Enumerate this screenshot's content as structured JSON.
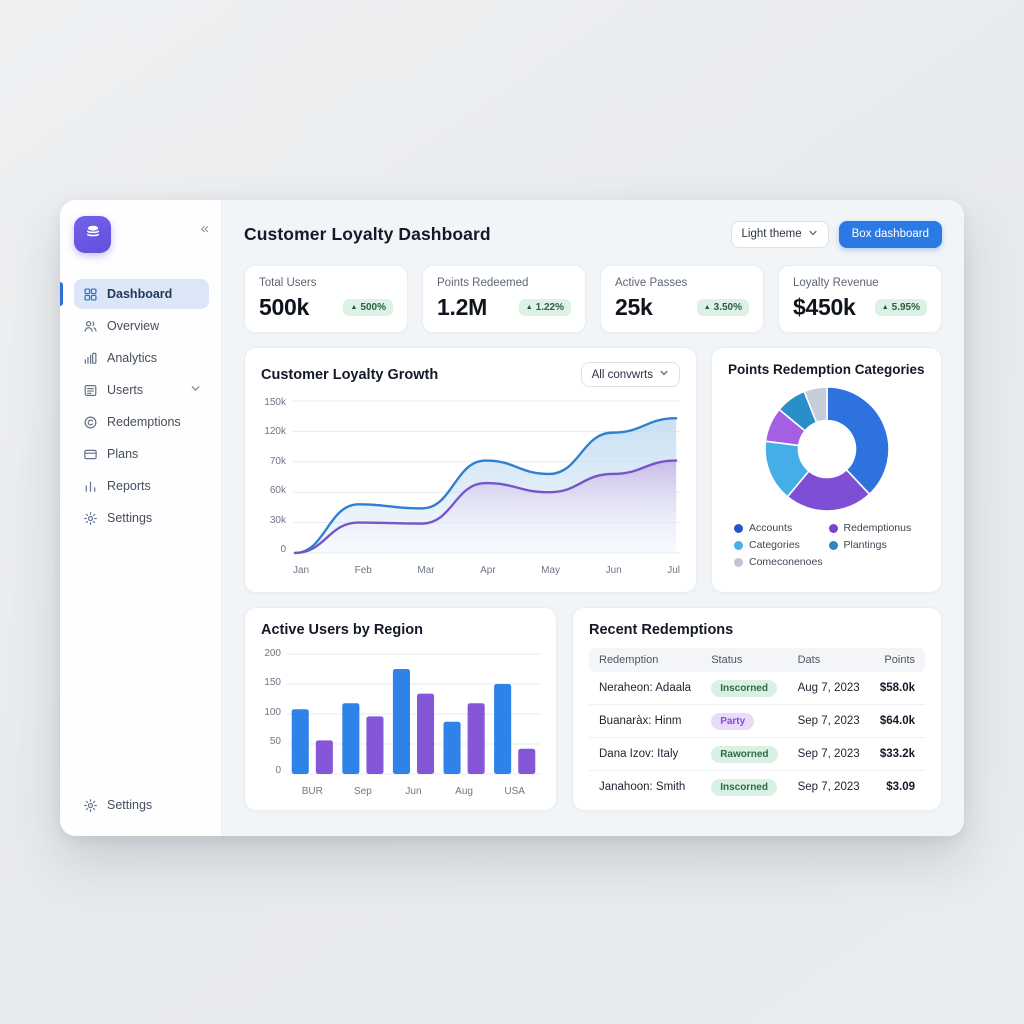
{
  "header": {
    "title": "Customer Loyalty Dashboard",
    "theme_selector_label": "Light theme",
    "primary_button_label": "Box dashboard"
  },
  "sidebar": {
    "collapse_glyph": "«",
    "items": [
      {
        "label": "Dashboard",
        "icon": "grid-icon",
        "active": true,
        "has_chevron": false
      },
      {
        "label": "Overview",
        "icon": "users-icon",
        "active": false,
        "has_chevron": false
      },
      {
        "label": "Analytics",
        "icon": "analytics-icon",
        "active": false,
        "has_chevron": false
      },
      {
        "label": "Userts",
        "icon": "list-icon",
        "active": false,
        "has_chevron": true
      },
      {
        "label": "Redemptions",
        "icon": "copyright-icon",
        "active": false,
        "has_chevron": false
      },
      {
        "label": "Plans",
        "icon": "card-icon",
        "active": false,
        "has_chevron": false
      },
      {
        "label": "Reports",
        "icon": "report-icon",
        "active": false,
        "has_chevron": false
      },
      {
        "label": "Settings",
        "icon": "gear-icon",
        "active": false,
        "has_chevron": false
      }
    ],
    "footer_item": {
      "label": "Settings",
      "icon": "gear-icon"
    }
  },
  "kpis": [
    {
      "label": "Total Users",
      "value": "500k",
      "delta": "500%"
    },
    {
      "label": "Points Redeemed",
      "value": "1.2M",
      "delta": "1.22%"
    },
    {
      "label": "Active Passes",
      "value": "25k",
      "delta": "3.50%"
    },
    {
      "label": "Loyalty Revenue",
      "value": "$450k",
      "delta": "5.95%"
    }
  ],
  "chart_data": [
    {
      "type": "area",
      "title": "Customer Loyalty Growth",
      "filter_label": "All convwrts",
      "x": [
        "Jan",
        "Feb",
        "Mar",
        "Apr",
        "May",
        "Jun",
        "Jul"
      ],
      "y_tick_labels": [
        "0",
        "30k",
        "60k",
        "70k",
        "120k",
        "150k"
      ],
      "y_tick_values": [
        0,
        30000,
        60000,
        70000,
        120000,
        150000
      ],
      "grid": true,
      "legend_position": "none",
      "series": [
        {
          "name": "upper-blue",
          "color": "#2e7ed2",
          "fill_top": "#c3ddf2",
          "values": [
            0,
            48000,
            44000,
            72000,
            66000,
            118000,
            133000
          ]
        },
        {
          "name": "lower-purple",
          "color": "#7556c8",
          "fill_top": "#c9b9e8",
          "values": [
            0,
            30000,
            29000,
            63000,
            60000,
            66000,
            72000
          ]
        }
      ]
    },
    {
      "type": "pie",
      "title": "Points Redemption Categories",
      "donut": true,
      "slices": [
        {
          "label": "Accounts",
          "value": 38,
          "color": "#2d72dd"
        },
        {
          "label": "Redemptionus",
          "value": 23,
          "color": "#7e4fd4"
        },
        {
          "label": "Categories",
          "value": 16,
          "color": "#45aee8"
        },
        {
          "label": "",
          "value": 9,
          "color": "#a55fe3"
        },
        {
          "label": "Plantings",
          "value": 8,
          "color": "#2a8ec9"
        },
        {
          "label": "Comeconenoes",
          "value": 6,
          "color": "#c7cdd8"
        }
      ],
      "legend": [
        {
          "label": "Accounts",
          "color": "#2456c4"
        },
        {
          "label": "Redemptionus",
          "color": "#7a43cf"
        },
        {
          "label": "Categories",
          "color": "#4aaee6"
        },
        {
          "label": "Plantings",
          "color": "#2a86c4"
        },
        {
          "label": "Comeconenoes",
          "color": "#bfc5d2"
        }
      ]
    },
    {
      "type": "bar",
      "title": "Active Users by Region",
      "categories": [
        "BUR",
        "Sep",
        "Jun",
        "Aug",
        "USA"
      ],
      "y_ticks": [
        0,
        50,
        100,
        150,
        200
      ],
      "ylim": [
        0,
        200
      ],
      "grid": true,
      "series": [
        {
          "name": "blue",
          "color": "#2e82e8",
          "values": [
            108,
            118,
            175,
            87,
            150
          ]
        },
        {
          "name": "purple",
          "color": "#8656d8",
          "values": [
            56,
            96,
            134,
            118,
            42
          ]
        }
      ]
    }
  ],
  "table": {
    "title": "Recent Redemptions",
    "headers": [
      "Redemption",
      "Status",
      "Dats",
      "Points"
    ],
    "rows": [
      {
        "redemption": "Neraheon: Adaala",
        "status": "Inscorned",
        "status_type": "green",
        "date": "Aug 7, 2023",
        "points": "$58.0k"
      },
      {
        "redemption": "Buanaràx: Hinm",
        "status": "Party",
        "status_type": "purple",
        "date": "Sep 7, 2023",
        "points": "$64.0k"
      },
      {
        "redemption": "Dana Izov: Italy",
        "status": "Raworned",
        "status_type": "green",
        "date": "Sep 7, 2023",
        "points": "$33.2k"
      },
      {
        "redemption": "Janahoon: Smith",
        "status": "Inscorned",
        "status_type": "green",
        "date": "Sep 7, 2023",
        "points": "$3.09"
      }
    ]
  },
  "colors": {
    "accent_blue": "#2b79e3",
    "accent_purple": "#6450dd",
    "badge_green_bg": "#dcf2e5",
    "badge_green_text": "#2f5d45",
    "page_background": "#e9ecee",
    "panel_background": "#ffffff",
    "main_background": "#f2f5f8"
  }
}
